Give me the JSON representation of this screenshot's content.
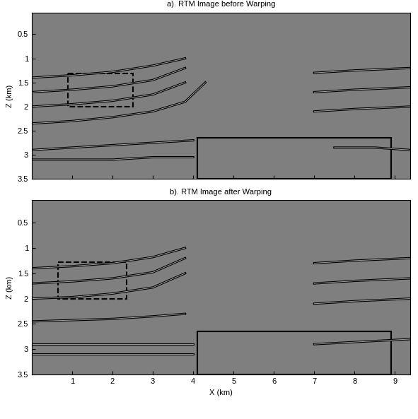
{
  "chart_data": [
    {
      "type": "image",
      "title": "a). RTM Image before Warping",
      "ylabel": "Z (km)",
      "xlim": [
        0,
        9.375
      ],
      "ylim": [
        3.5,
        0.05
      ],
      "xticks": [
        1,
        2,
        3,
        4,
        5,
        6,
        7,
        8,
        9
      ],
      "yticks": [
        0.5,
        1,
        1.5,
        2,
        2.5,
        3,
        3.5
      ],
      "tick_labels": "y",
      "boxes": [
        {
          "x": [
            0.9,
            2.5
          ],
          "z": [
            1.32,
            2.0
          ],
          "line_style": "dashed"
        },
        {
          "x": [
            4.1,
            8.9
          ],
          "z": [
            2.65,
            3.5
          ],
          "line_style": "solid"
        }
      ],
      "horizons": [
        {
          "x": [
            0,
            1,
            2,
            3,
            3.8
          ],
          "z": [
            1.4,
            1.35,
            1.28,
            1.15,
            1.0
          ]
        },
        {
          "x": [
            0,
            1,
            2,
            3,
            3.8
          ],
          "z": [
            1.7,
            1.65,
            1.58,
            1.45,
            1.2
          ]
        },
        {
          "x": [
            0,
            1,
            2,
            3,
            3.8
          ],
          "z": [
            2.0,
            1.95,
            1.88,
            1.75,
            1.5
          ]
        },
        {
          "x": [
            0,
            1,
            2,
            3,
            3.8,
            4.3
          ],
          "z": [
            2.35,
            2.3,
            2.22,
            2.1,
            1.9,
            1.5
          ]
        },
        {
          "x": [
            0,
            1,
            2,
            3,
            4
          ],
          "z": [
            2.9,
            2.85,
            2.8,
            2.75,
            2.7
          ]
        },
        {
          "x": [
            0,
            1,
            2,
            3,
            4
          ],
          "z": [
            3.1,
            3.1,
            3.1,
            3.05,
            3.05
          ]
        },
        {
          "x": [
            7,
            8,
            9.375
          ],
          "z": [
            1.3,
            1.25,
            1.2
          ]
        },
        {
          "x": [
            7,
            8,
            9.375
          ],
          "z": [
            1.7,
            1.65,
            1.6
          ]
        },
        {
          "x": [
            7,
            8,
            9.375
          ],
          "z": [
            2.1,
            2.05,
            2.0
          ]
        },
        {
          "x": [
            7.5,
            8.5,
            9.375
          ],
          "z": [
            2.85,
            2.85,
            2.9
          ]
        }
      ]
    },
    {
      "type": "image",
      "title": "b). RTM Image after Warping",
      "xlabel": "X (km)",
      "ylabel": "Z (km)",
      "xlim": [
        0,
        9.375
      ],
      "ylim": [
        3.5,
        0.05
      ],
      "xticks": [
        1,
        2,
        3,
        4,
        5,
        6,
        7,
        8,
        9
      ],
      "yticks": [
        0.5,
        1,
        1.5,
        2,
        2.5,
        3,
        3.5
      ],
      "boxes": [
        {
          "x": [
            0.65,
            2.35
          ],
          "z": [
            1.28,
            2.0
          ],
          "line_style": "dashed"
        },
        {
          "x": [
            4.1,
            8.9
          ],
          "z": [
            2.65,
            3.5
          ],
          "line_style": "solid"
        }
      ],
      "horizons": [
        {
          "x": [
            0,
            1,
            2,
            3,
            3.8
          ],
          "z": [
            1.4,
            1.36,
            1.3,
            1.18,
            1.0
          ]
        },
        {
          "x": [
            0,
            1,
            2,
            3,
            3.8
          ],
          "z": [
            1.7,
            1.66,
            1.6,
            1.48,
            1.2
          ]
        },
        {
          "x": [
            0,
            1,
            2,
            3,
            3.8
          ],
          "z": [
            2.0,
            1.97,
            1.9,
            1.78,
            1.5
          ]
        },
        {
          "x": [
            0,
            2,
            3,
            3.8
          ],
          "z": [
            2.45,
            2.4,
            2.35,
            2.3
          ]
        },
        {
          "x": [
            0,
            2,
            4
          ],
          "z": [
            2.9,
            2.9,
            2.9
          ]
        },
        {
          "x": [
            0,
            2,
            4
          ],
          "z": [
            3.1,
            3.1,
            3.1
          ]
        },
        {
          "x": [
            7,
            8,
            9.375
          ],
          "z": [
            1.3,
            1.25,
            1.2
          ]
        },
        {
          "x": [
            7,
            8,
            9.375
          ],
          "z": [
            1.7,
            1.65,
            1.6
          ]
        },
        {
          "x": [
            7,
            8,
            9.375
          ],
          "z": [
            2.1,
            2.05,
            2.0
          ]
        },
        {
          "x": [
            7,
            9.375
          ],
          "z": [
            2.9,
            2.8
          ]
        }
      ]
    }
  ]
}
